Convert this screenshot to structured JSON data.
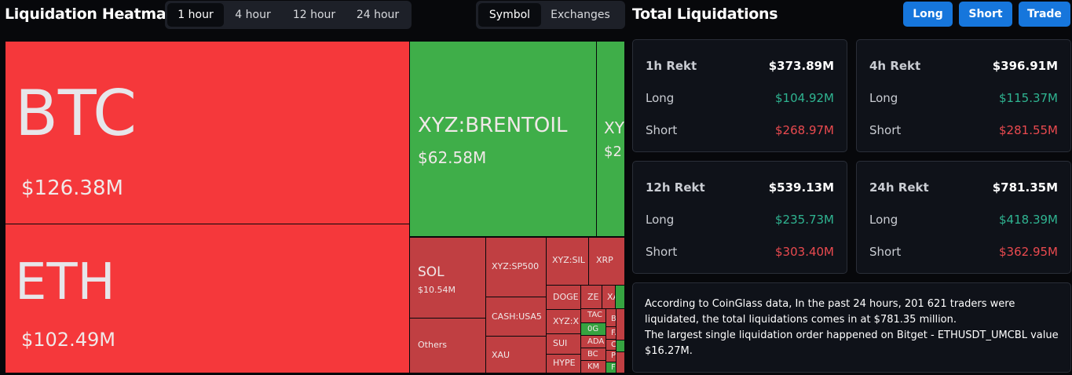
{
  "heatmap": {
    "title": "Liquidation Heatmap",
    "time_tabs": [
      "1 hour",
      "4 hour",
      "12 hour",
      "24 hour"
    ],
    "view_tabs": [
      "Symbol",
      "Exchanges"
    ],
    "tiles": [
      {
        "label": "BTC",
        "value": "$126.38M"
      },
      {
        "label": "ETH",
        "value": "$102.49M"
      },
      {
        "label": "XYZ:BRENTOIL",
        "value": "$62.58M"
      },
      {
        "label": "XY",
        "value": "$2"
      },
      {
        "label": "SOL",
        "value": "$10.54M"
      },
      {
        "label": "Others"
      },
      {
        "label": "XYZ:SP500"
      },
      {
        "label": "CASH:USA5"
      },
      {
        "label": "XAU"
      },
      {
        "label": "XYZ:SIL"
      },
      {
        "label": "XRP"
      },
      {
        "label": "DOGE"
      },
      {
        "label": "XYZ:X"
      },
      {
        "label": "SUI"
      },
      {
        "label": "HYPE"
      },
      {
        "label": "ZE"
      },
      {
        "label": "XA"
      },
      {
        "label": "TAC"
      },
      {
        "label": "B"
      },
      {
        "label": "0G"
      },
      {
        "label": "FA"
      },
      {
        "label": "ADA"
      },
      {
        "label": "C"
      },
      {
        "label": "BC"
      },
      {
        "label": "P"
      },
      {
        "label": "KM"
      },
      {
        "label": "F"
      }
    ]
  },
  "summary": {
    "title": "Total Liquidations",
    "buttons": [
      "Long",
      "Short",
      "Trade"
    ],
    "cards": [
      {
        "title": "1h Rekt",
        "total": "$373.89M",
        "rows": [
          {
            "label": "Long",
            "value": "$104.92M"
          },
          {
            "label": "Short",
            "value": "$268.97M"
          }
        ]
      },
      {
        "title": "4h Rekt",
        "total": "$396.91M",
        "rows": [
          {
            "label": "Long",
            "value": "$115.37M"
          },
          {
            "label": "Short",
            "value": "$281.55M"
          }
        ]
      },
      {
        "title": "12h Rekt",
        "total": "$539.13M",
        "rows": [
          {
            "label": "Long",
            "value": "$235.73M"
          },
          {
            "label": "Short",
            "value": "$303.40M"
          }
        ]
      },
      {
        "title": "24h Rekt",
        "total": "$781.35M",
        "rows": [
          {
            "label": "Long",
            "value": "$418.39M"
          },
          {
            "label": "Short",
            "value": "$362.95M"
          }
        ]
      }
    ],
    "note": [
      "According to CoinGlass data, In the past 24 hours, 201 621 traders were liquidated, the total liquidations comes in at $781.35 million.",
      "The largest single liquidation order happened on Bitget - ETHUSDT_UMCBL value $16.27M."
    ]
  }
}
